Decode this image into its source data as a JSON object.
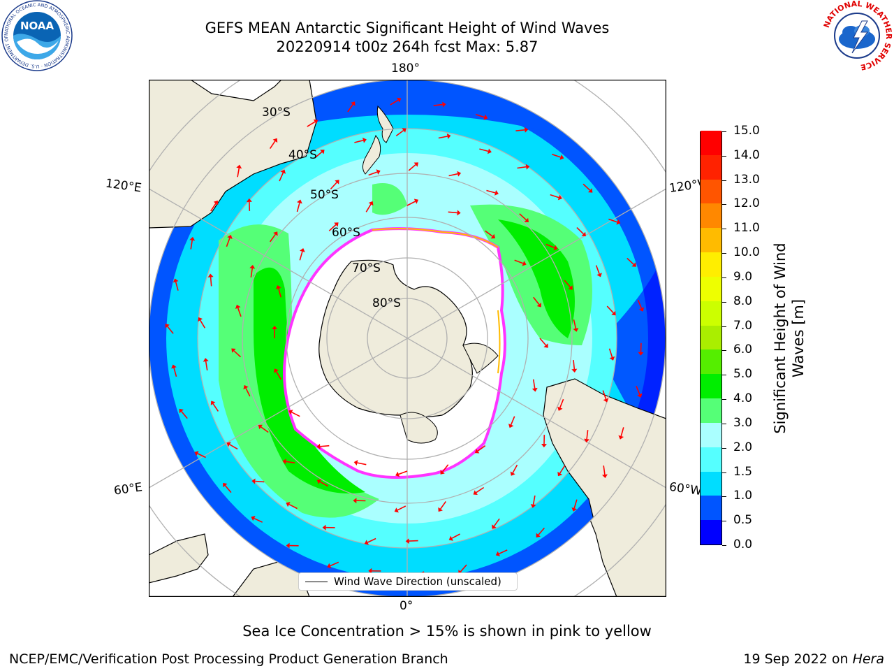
{
  "header": {
    "title_line1": "GEFS MEAN Antarctic Significant Height of Wind Waves",
    "title_line2": "20220914 t00z 264h fcst   Max: 5.87"
  },
  "logos": {
    "noaa_text": "NOAA",
    "noaa_ring_text": "NATIONAL OCEANIC AND ATMOSPHERIC ADMINISTRATION · U.S. DEPARTMENT OF COMMERCE",
    "nws_ring_text": "NATIONAL WEATHER SERVICE"
  },
  "map": {
    "lon_labels": {
      "top": "180°",
      "bottom": "0°",
      "upper_left": "120°E",
      "upper_right": "120°W",
      "lower_left": "60°E",
      "lower_right": "60°W"
    },
    "lat_labels": [
      "30°S",
      "40°S",
      "50°S",
      "60°S",
      "70°S",
      "80°S"
    ],
    "legend_label": "Wind Wave Direction (unscaled)",
    "colors": {
      "land": "#efecdc",
      "ice_edge": "#ff33ff",
      "arrow": "#ff0000",
      "grid": "#b0b0b0"
    }
  },
  "colorbar": {
    "label": "Significant Height of Wind Waves [m]",
    "ticks": [
      "0.0",
      "0.5",
      "1.0",
      "1.5",
      "2.0",
      "3.0",
      "4.0",
      "5.0",
      "6.0",
      "7.0",
      "8.0",
      "9.0",
      "10.0",
      "11.0",
      "12.0",
      "13.0",
      "14.0",
      "15.0"
    ],
    "colors": [
      "#0000ff",
      "#0055ff",
      "#00ddff",
      "#55ffff",
      "#aaffff",
      "#55ff77",
      "#00ee00",
      "#55ee00",
      "#aaee00",
      "#ccff00",
      "#eeff00",
      "#ffee00",
      "#ffbb00",
      "#ff8800",
      "#ff5500",
      "#ff2200",
      "#ff0000"
    ]
  },
  "footer": {
    "note": "Sea Ice Concentration > 15% is shown in pink to yellow",
    "left": "NCEP/EMC/Verification Post Processing Product Generation Branch",
    "right_prefix": "19 Sep 2022 on ",
    "right_machine": "Hera"
  }
}
